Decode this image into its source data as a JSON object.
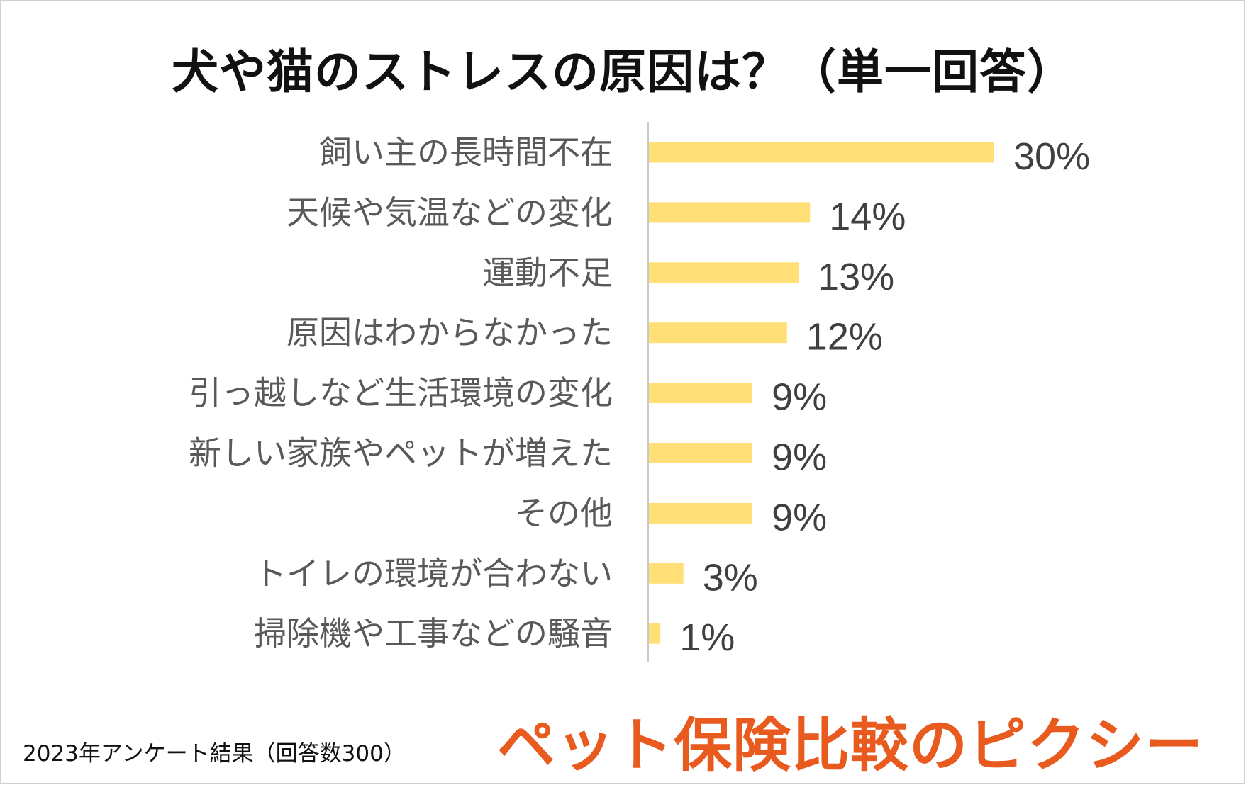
{
  "title": "犬や猫のストレスの原因は？（単一回答）",
  "footer_note": "2023年アンケート結果（回答数300）",
  "brand": "ペット保険比較のピクシー",
  "colors": {
    "bar": "#ffdf76",
    "axis": "#c8c8c8",
    "category_label": "#595959",
    "value_label": "#404040",
    "brand": "#e85a1e"
  },
  "chart_data": {
    "type": "bar",
    "orientation": "horizontal",
    "categories": [
      "飼い主の長時間不在",
      "天候や気温などの変化",
      "運動不足",
      "原因はわからなかった",
      "引っ越しなど生活環境の変化",
      "新しい家族やペットが増えた",
      "その他",
      "トイレの環境が合わない",
      "掃除機や工事などの騒音"
    ],
    "values": [
      30,
      14,
      13,
      12,
      9,
      9,
      9,
      3,
      1
    ],
    "value_labels": [
      "30%",
      "14%",
      "13%",
      "12%",
      "9%",
      "9%",
      "9%",
      "3%",
      "1%"
    ],
    "unit": "%",
    "xlim": [
      0,
      30
    ],
    "grid": false,
    "legend": "none"
  }
}
